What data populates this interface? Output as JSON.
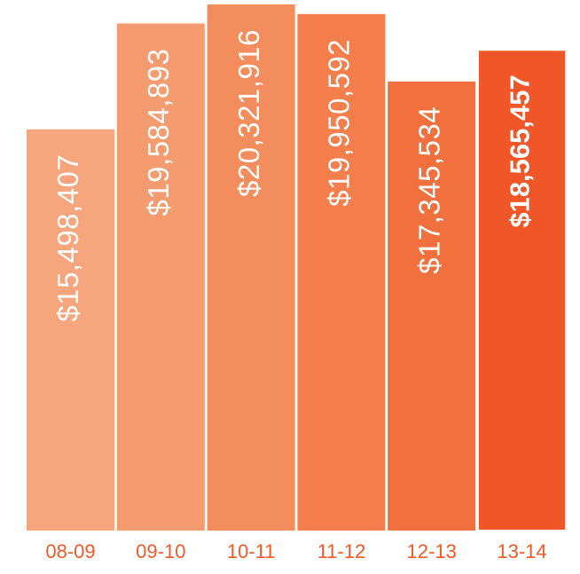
{
  "chart_data": {
    "type": "bar",
    "categories": [
      "08-09",
      "09-10",
      "10-11",
      "11-12",
      "12-13",
      "13-14"
    ],
    "values": [
      15498407,
      19584893,
      20321916,
      19950592,
      17345534,
      18565457
    ],
    "value_labels": [
      "$15,498,407",
      "$19,584,893",
      "$20,321,916",
      "$19,950,592",
      "$17,345,534",
      "$18,565,457"
    ],
    "colors": [
      "#f6a57c",
      "#f59b70",
      "#f48d5e",
      "#f47e4c",
      "#f2703e",
      "#f05628"
    ],
    "label_color": "#f05a28",
    "highlight_index": 5
  }
}
